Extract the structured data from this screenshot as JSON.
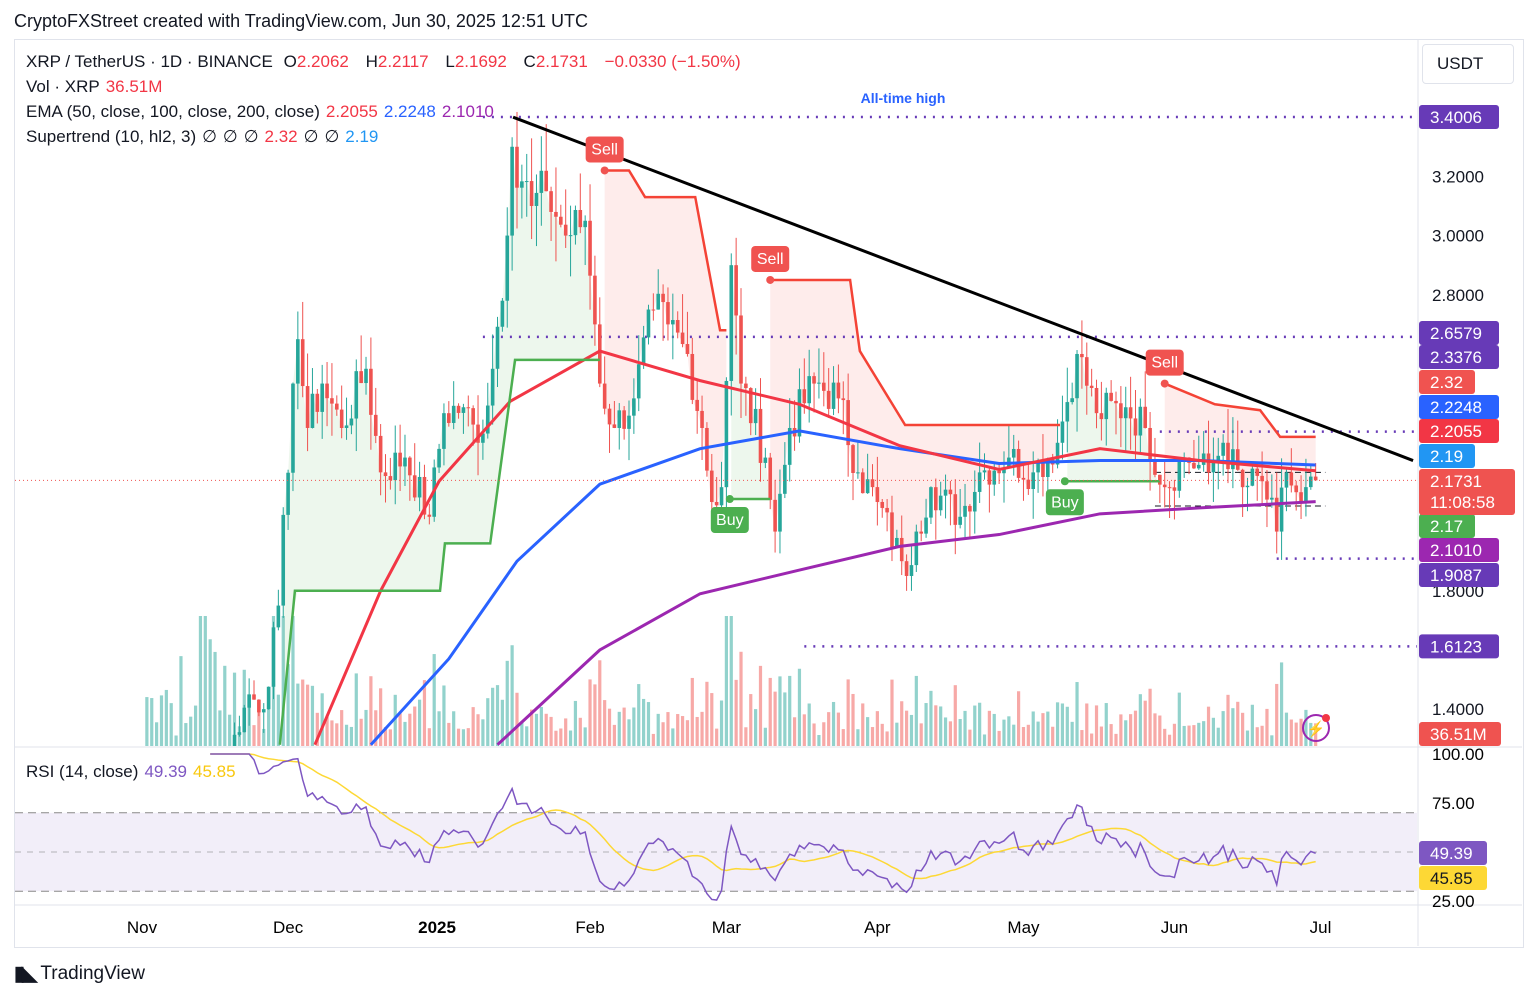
{
  "header": {
    "title": "CryptoFXStreet created with TradingView.com, Jun 30, 2025 12:51 UTC"
  },
  "legend": {
    "symbol": "XRP / TetherUS · 1D · BINANCE",
    "o_label": "O",
    "o": "2.2062",
    "h_label": "H",
    "h": "2.2117",
    "l_label": "L",
    "l": "2.1692",
    "c_label": "C",
    "c": "2.1731",
    "change": "−0.0330 (−1.50%)",
    "vol_label": "Vol · XRP",
    "vol": "36.51M",
    "ema_label": "EMA (50, close, 100, close, 200, close)",
    "ema50": "2.2055",
    "ema100": "2.2248",
    "ema200": "2.1010",
    "st_label": "Supertrend (10, hl2, 3)",
    "st_null": "∅",
    "st_up": "2.32",
    "st_down": "2.19"
  },
  "rsi_legend": {
    "label": "RSI (14, close)",
    "rsi": "49.39",
    "ma": "45.85"
  },
  "currency": "USDT",
  "footer": {
    "brand": "TradingView"
  },
  "colors": {
    "up": "#26a69a",
    "down": "#ef5350",
    "ema50": "#f23645",
    "ema100": "#2962ff",
    "ema200": "#9c27b0",
    "st_up": "#4caf50",
    "st_down": "#f44336",
    "level": "#673ab7",
    "rsi": "#7e57c2",
    "rsi_ma": "#fdd835"
  },
  "chart_data": {
    "type": "candlestick",
    "start_date": "2024-11-01",
    "closes_waypoints": [
      [
        0,
        0.51
      ],
      [
        11,
        0.7
      ],
      [
        15,
        1.1
      ],
      [
        22,
        1.45
      ],
      [
        25,
        1.4
      ],
      [
        28,
        1.75
      ],
      [
        31,
        2.5
      ],
      [
        32,
        2.65
      ],
      [
        34,
        2.35
      ],
      [
        37,
        2.5
      ],
      [
        41,
        2.35
      ],
      [
        46,
        2.55
      ],
      [
        49,
        2.2
      ],
      [
        54,
        2.25
      ],
      [
        59,
        2.05
      ],
      [
        62,
        2.4
      ],
      [
        66,
        2.42
      ],
      [
        69,
        2.3
      ],
      [
        72,
        2.55
      ],
      [
        75,
        3.0
      ],
      [
        76,
        3.3
      ],
      [
        80,
        3.1
      ],
      [
        83,
        3.15
      ],
      [
        87,
        3.0
      ],
      [
        91,
        3.05
      ],
      [
        93,
        2.7
      ],
      [
        94,
        2.5
      ],
      [
        97,
        2.35
      ],
      [
        101,
        2.45
      ],
      [
        105,
        2.75
      ],
      [
        108,
        2.7
      ],
      [
        112,
        2.6
      ],
      [
        115,
        2.35
      ],
      [
        117,
        2.1
      ],
      [
        119,
        2.15
      ],
      [
        121,
        2.9
      ],
      [
        123,
        2.5
      ],
      [
        128,
        2.25
      ],
      [
        130,
        2.0
      ],
      [
        133,
        2.35
      ],
      [
        138,
        2.5
      ],
      [
        143,
        2.45
      ],
      [
        147,
        2.2
      ],
      [
        151,
        2.1
      ],
      [
        156,
        1.9
      ],
      [
        157,
        1.85
      ],
      [
        159,
        2.0
      ],
      [
        162,
        2.15
      ],
      [
        168,
        2.05
      ],
      [
        172,
        2.2
      ],
      [
        178,
        2.25
      ],
      [
        183,
        2.2
      ],
      [
        188,
        2.3
      ],
      [
        192,
        2.6
      ],
      [
        196,
        2.4
      ],
      [
        202,
        2.42
      ],
      [
        206,
        2.35
      ],
      [
        210,
        2.15
      ],
      [
        214,
        2.25
      ],
      [
        219,
        2.2
      ],
      [
        222,
        2.3
      ],
      [
        226,
        2.15
      ],
      [
        230,
        2.17
      ],
      [
        233,
        2.0
      ],
      [
        235,
        2.2
      ],
      [
        238,
        2.1
      ],
      [
        241,
        2.1731
      ]
    ],
    "ema50": [
      [
        35.5,
        1.28
      ],
      [
        49,
        1.8
      ],
      [
        61,
        2.17
      ],
      [
        75.6,
        2.44
      ],
      [
        94,
        2.61
      ],
      [
        114.6,
        2.51
      ],
      [
        135,
        2.43
      ],
      [
        155.6,
        2.29
      ],
      [
        176,
        2.21
      ],
      [
        196.7,
        2.28
      ],
      [
        217.2,
        2.24
      ],
      [
        241,
        2.2055
      ]
    ],
    "ema100": [
      [
        47,
        1.28
      ],
      [
        63,
        1.57
      ],
      [
        77,
        1.9
      ],
      [
        94,
        2.16
      ],
      [
        114.6,
        2.28
      ],
      [
        135,
        2.34
      ],
      [
        155.6,
        2.28
      ],
      [
        176,
        2.23
      ],
      [
        196.7,
        2.24
      ],
      [
        217.2,
        2.24
      ],
      [
        241,
        2.2248
      ]
    ],
    "ema200": [
      [
        73,
        1.28
      ],
      [
        94,
        1.6
      ],
      [
        114.6,
        1.79
      ],
      [
        135,
        1.87
      ],
      [
        155.6,
        1.95
      ],
      [
        176,
        1.99
      ],
      [
        196.7,
        2.06
      ],
      [
        217.2,
        2.08
      ],
      [
        241,
        2.101
      ]
    ],
    "supertrend_up": [
      [
        [
          28.3,
          1.28
        ],
        [
          31.4,
          1.8
        ],
        [
          61.2,
          1.8
        ],
        [
          62.2,
          1.96
        ],
        [
          71.5,
          1.96
        ],
        [
          76.6,
          2.58
        ],
        [
          94,
          2.58
        ]
      ],
      [
        [
          120.7,
          2.11
        ],
        [
          129,
          2.11
        ]
      ],
      [
        [
          189.5,
          2.17
        ],
        [
          209,
          2.17
        ]
      ]
    ],
    "supertrend_down": [
      [
        [
          95,
          3.22
        ],
        [
          100,
          3.22
        ],
        [
          103.3,
          3.13
        ],
        [
          113.6,
          3.13
        ],
        [
          118.7,
          2.68
        ],
        [
          120,
          2.68
        ]
      ],
      [
        [
          129,
          2.85
        ],
        [
          145.4,
          2.85
        ],
        [
          147.4,
          2.61
        ],
        [
          156.7,
          2.36
        ],
        [
          188.5,
          2.36
        ]
      ],
      [
        [
          210,
          2.5
        ],
        [
          220.3,
          2.43
        ],
        [
          229.6,
          2.41
        ],
        [
          233.7,
          2.32
        ],
        [
          241,
          2.32
        ]
      ]
    ],
    "signals": [
      {
        "day": 95,
        "type": "sell",
        "label": "Sell",
        "price": 3.22
      },
      {
        "day": 129,
        "type": "sell",
        "label": "Sell",
        "price": 2.85
      },
      {
        "day": 210,
        "type": "sell",
        "label": "Sell",
        "price": 2.5
      },
      {
        "day": 120.7,
        "type": "buy",
        "label": "Buy",
        "price": 2.11
      },
      {
        "day": 189.5,
        "type": "buy",
        "label": "Buy",
        "price": 2.17
      }
    ],
    "levels": [
      {
        "value": 3.4006,
        "from_day": 70,
        "label": "3.4006",
        "note": "All-time high"
      },
      {
        "value": 2.6579,
        "from_day": 70,
        "label": "2.6579"
      },
      {
        "value": 2.3376,
        "from_day": 209,
        "label": "2.3376"
      },
      {
        "value": 1.9087,
        "from_day": 233,
        "label": "1.9087"
      },
      {
        "value": 1.6123,
        "from_day": 136,
        "label": "1.6123"
      }
    ],
    "range_lines": [
      2.2,
      2.0865
    ],
    "trendline": [
      [
        76.2,
        3.4
      ],
      [
        261,
        2.24
      ]
    ],
    "price_axis": {
      "ticks": [
        "3.2000",
        "3.0000",
        "2.8000",
        "1.8000",
        "1.4000"
      ],
      "tick_values": [
        3.2,
        3.0,
        2.8,
        1.8,
        1.4
      ]
    },
    "axis_labels": [
      {
        "text": "2.6579",
        "value": 2.6579,
        "color": "#673ab7"
      },
      {
        "text": "2.3376",
        "value": 2.3376,
        "color": "#673ab7"
      },
      {
        "text": "2.32",
        "value": 2.32,
        "color": "#f05350"
      },
      {
        "text": "2.2248",
        "value": 2.2248,
        "color": "#2962ff"
      },
      {
        "text": "2.2055",
        "value": 2.2055,
        "color": "#f23645"
      },
      {
        "text": "2.19",
        "value": 2.19,
        "color": "#2196f3"
      },
      {
        "text": "2.17",
        "value": 2.17,
        "color": "#4caf50"
      },
      {
        "text": "2.1010",
        "value": 2.101,
        "color": "#9c27b0"
      },
      {
        "text": "1.9087",
        "value": 1.9087,
        "color": "#673ab7"
      }
    ],
    "last_price": {
      "text": "2.1731",
      "countdown": "11:08:58"
    },
    "volume_label": "36.51M",
    "rsi_axis": [
      "100.00",
      "75.00",
      "25.00"
    ],
    "rsi_bands": [
      70,
      30
    ],
    "time_ticks": [
      {
        "label": "Nov",
        "day": 0
      },
      {
        "label": "Dec",
        "day": 30
      },
      {
        "label": "2025",
        "day": 61,
        "bold": true
      },
      {
        "label": "Feb",
        "day": 92
      },
      {
        "label": "Mar",
        "day": 120
      },
      {
        "label": "Apr",
        "day": 151
      },
      {
        "label": "May",
        "day": 181
      },
      {
        "label": "Jun",
        "day": 212
      },
      {
        "label": "Jul",
        "day": 242
      }
    ]
  }
}
